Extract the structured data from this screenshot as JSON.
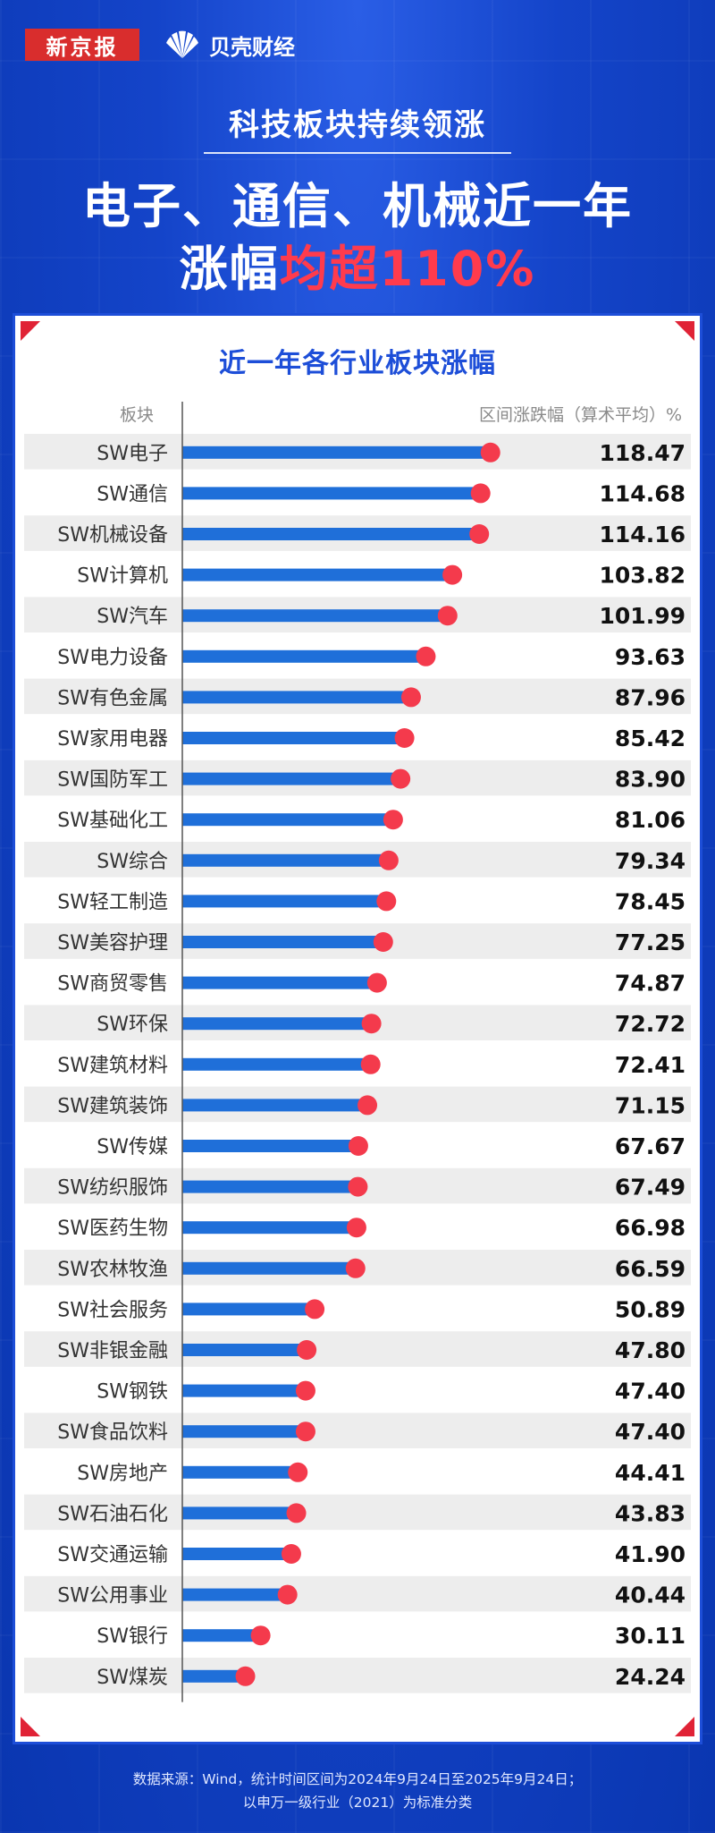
{
  "brand": {
    "newspaper": "新京报",
    "app": "贝壳财经"
  },
  "headline": {
    "subtitle": "科技板块持续领涨",
    "line1": "电子、通信、机械近一年",
    "line2_white": "涨幅",
    "line2_red": "均超110%"
  },
  "chart": {
    "header_left": "板块",
    "header_right": "区间涨跌幅（算术平均）%"
  },
  "chart_data": {
    "type": "bar",
    "orientation": "horizontal",
    "title": "近一年各行业板块涨幅",
    "xlabel": "区间涨跌幅（算术平均）%",
    "ylabel": "板块",
    "xlim": [
      0,
      130
    ],
    "categories": [
      "SW电子",
      "SW通信",
      "SW机械设备",
      "SW计算机",
      "SW汽车",
      "SW电力设备",
      "SW有色金属",
      "SW家用电器",
      "SW国防军工",
      "SW基础化工",
      "SW综合",
      "SW轻工制造",
      "SW美容护理",
      "SW商贸零售",
      "SW环保",
      "SW建筑材料",
      "SW建筑装饰",
      "SW传媒",
      "SW纺织服饰",
      "SW医药生物",
      "SW农林牧渔",
      "SW社会服务",
      "SW非银金融",
      "SW钢铁",
      "SW食品饮料",
      "SW房地产",
      "SW石油石化",
      "SW交通运输",
      "SW公用事业",
      "SW银行",
      "SW煤炭"
    ],
    "values": [
      118.47,
      114.68,
      114.16,
      103.82,
      101.99,
      93.63,
      87.96,
      85.42,
      83.9,
      81.06,
      79.34,
      78.45,
      77.25,
      74.87,
      72.72,
      72.41,
      71.15,
      67.67,
      67.49,
      66.98,
      66.59,
      50.89,
      47.8,
      47.4,
      47.4,
      44.41,
      43.83,
      41.9,
      40.44,
      30.11,
      24.24
    ],
    "value_labels": [
      "118.47",
      "114.68",
      "114.16",
      "103.82",
      "101.99",
      "93.63",
      "87.96",
      "85.42",
      "83.90",
      "81.06",
      "79.34",
      "78.45",
      "77.25",
      "74.87",
      "72.72",
      "72.41",
      "71.15",
      "67.67",
      "67.49",
      "66.98",
      "66.59",
      "50.89",
      "47.80",
      "47.40",
      "47.40",
      "44.41",
      "43.83",
      "41.90",
      "40.44",
      "30.11",
      "24.24"
    ]
  },
  "colors": {
    "bar": "#1f6fd9",
    "dot": "#f43a4c",
    "row_alt": "#ededed",
    "brand_blue": "#1d4ed8",
    "accent_red": "#ff3b4d"
  },
  "footnote": {
    "line1": "数据来源：Wind，统计时间区间为2024年9月24日至2025年9月24日；",
    "line2": "以申万一级行业（2021）为标准分类"
  }
}
